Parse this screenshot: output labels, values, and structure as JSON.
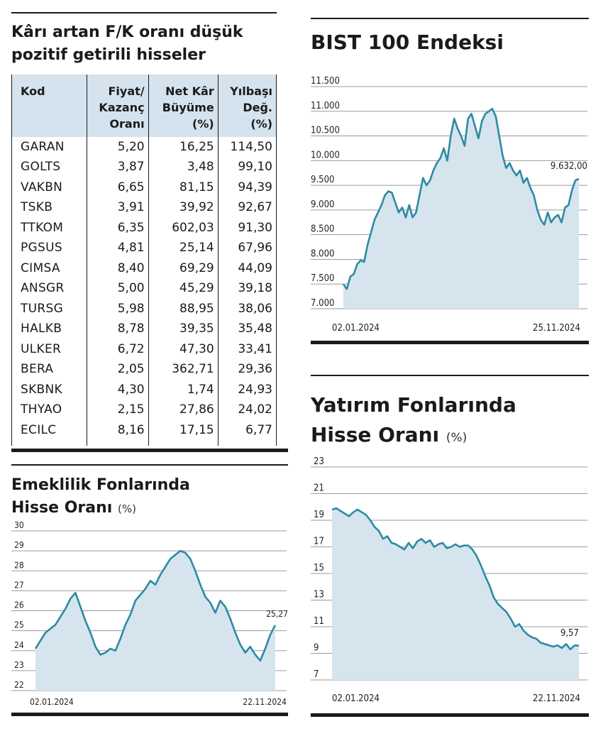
{
  "table_panel": {
    "title": "Kârı artan F/K oranı düşük pozitif getirili hisseler",
    "headers": {
      "kod": "Kod",
      "fk_1": "Fiyat/",
      "fk_2": "Kazanç",
      "fk_3": "Oranı",
      "nk_1": "Net Kâr",
      "nk_2": "Büyüme",
      "nk_3": "(%)",
      "yb_1": "Yılbaşı",
      "yb_2": "Değ.",
      "yb_3": "(%)"
    }
  },
  "chart_data": [
    {
      "type": "table",
      "title": "Kârı artan F/K oranı düşük pozitif getirili hisseler",
      "columns": [
        "Kod",
        "Fiyat/Kazanç Oranı",
        "Net Kâr Büyüme (%)",
        "Yılbaşı Değ. (%)"
      ],
      "rows": [
        [
          "GARAN",
          "5,20",
          "16,25",
          "114,50"
        ],
        [
          "GOLTS",
          "3,87",
          "3,48",
          "99,10"
        ],
        [
          "VAKBN",
          "6,65",
          "81,15",
          "94,39"
        ],
        [
          "TSKB",
          "3,91",
          "39,92",
          "92,67"
        ],
        [
          "TTKOM",
          "6,35",
          "602,03",
          "91,30"
        ],
        [
          "PGSUS",
          "4,81",
          "25,14",
          "67,96"
        ],
        [
          "CIMSA",
          "8,40",
          "69,29",
          "44,09"
        ],
        [
          "ANSGR",
          "5,00",
          "45,29",
          "39,18"
        ],
        [
          "TURSG",
          "5,98",
          "88,95",
          "38,06"
        ],
        [
          "HALKB",
          "8,78",
          "39,35",
          "35,48"
        ],
        [
          "ULKER",
          "6,72",
          "47,30",
          "33,41"
        ],
        [
          "BERA",
          "2,05",
          "362,71",
          "29,36"
        ],
        [
          "SKBNK",
          "4,30",
          "1,74",
          "24,93"
        ],
        [
          "THYAO",
          "2,15",
          "27,86",
          "24,02"
        ],
        [
          "ECILC",
          "8,16",
          "17,15",
          "6,77"
        ]
      ]
    },
    {
      "type": "area",
      "title": "BIST 100 Endeksi",
      "ylim": [
        7000,
        11500
      ],
      "yticks": [
        "11.500",
        "11.000",
        "10.500",
        "10.000",
        "9.500",
        "9.000",
        "8.500",
        "8.000",
        "7.500",
        "7.000"
      ],
      "ytick_values": [
        11500,
        11000,
        10500,
        10000,
        9500,
        9000,
        8500,
        8000,
        7500,
        7000
      ],
      "x_start_label": "02.01.2024",
      "x_end_label": "25.11.2024",
      "last_value_label": "9.632,00",
      "values": [
        7500,
        7400,
        7650,
        7700,
        7900,
        7980,
        7950,
        8300,
        8550,
        8800,
        8950,
        9100,
        9300,
        9380,
        9350,
        9150,
        8950,
        9050,
        8850,
        9100,
        8850,
        8950,
        9300,
        9650,
        9500,
        9600,
        9800,
        9950,
        10050,
        10250,
        10000,
        10500,
        10850,
        10650,
        10500,
        10300,
        10850,
        10950,
        10700,
        10450,
        10800,
        10950,
        11000,
        11050,
        10900,
        10500,
        10100,
        9850,
        9950,
        9800,
        9700,
        9800,
        9550,
        9650,
        9450,
        9300,
        9000,
        8800,
        8700,
        8950,
        8750,
        8850,
        8900,
        8750,
        9050,
        9100,
        9400,
        9600,
        9632
      ]
    },
    {
      "type": "area",
      "title": "Yatırım Fonlarında Hisse Oranı",
      "unit": "(%)",
      "ylim": [
        7,
        23
      ],
      "yticks": [
        "23",
        "21",
        "19",
        "17",
        "15",
        "13",
        "11",
        "9",
        "7"
      ],
      "ytick_values": [
        23,
        21,
        19,
        17,
        15,
        13,
        11,
        9,
        7
      ],
      "x_start_label": "02.01.2024",
      "x_end_label": "22.11.2024",
      "last_value_label": "9,57",
      "values": [
        19.8,
        19.9,
        19.7,
        19.5,
        19.3,
        19.6,
        19.8,
        19.6,
        19.4,
        19.0,
        18.5,
        18.2,
        17.6,
        17.8,
        17.3,
        17.2,
        17.0,
        16.8,
        17.3,
        16.9,
        17.4,
        17.6,
        17.3,
        17.5,
        17.0,
        17.2,
        17.3,
        16.9,
        17.0,
        17.2,
        17.0,
        17.1,
        17.1,
        16.8,
        16.3,
        15.6,
        14.8,
        14.1,
        13.2,
        12.7,
        12.4,
        12.1,
        11.6,
        11.0,
        11.2,
        10.7,
        10.4,
        10.2,
        10.1,
        9.8,
        9.7,
        9.6,
        9.5,
        9.6,
        9.4,
        9.7,
        9.3,
        9.6,
        9.57
      ]
    },
    {
      "type": "area",
      "title": "Emeklilik Fonlarında Hisse Oranı",
      "unit": "(%)",
      "ylim": [
        22,
        30
      ],
      "yticks": [
        "30",
        "29",
        "28",
        "27",
        "26",
        "25",
        "24",
        "23",
        "22"
      ],
      "ytick_values": [
        30,
        29,
        28,
        27,
        26,
        25,
        24,
        23,
        22
      ],
      "x_start_label": "02.01.2024",
      "x_end_label": "22.11.2024",
      "last_value_label": "25,27",
      "values": [
        24.1,
        24.5,
        24.9,
        25.1,
        25.3,
        25.7,
        26.1,
        26.6,
        26.9,
        26.2,
        25.5,
        24.9,
        24.2,
        23.8,
        23.9,
        24.1,
        24.0,
        24.6,
        25.3,
        25.8,
        26.5,
        26.8,
        27.1,
        27.5,
        27.3,
        27.8,
        28.2,
        28.6,
        28.8,
        29.0,
        28.9,
        28.6,
        28.0,
        27.3,
        26.7,
        26.4,
        25.9,
        26.5,
        26.2,
        25.6,
        24.9,
        24.3,
        23.9,
        24.2,
        23.8,
        23.5,
        24.1,
        24.8,
        25.27
      ]
    }
  ]
}
